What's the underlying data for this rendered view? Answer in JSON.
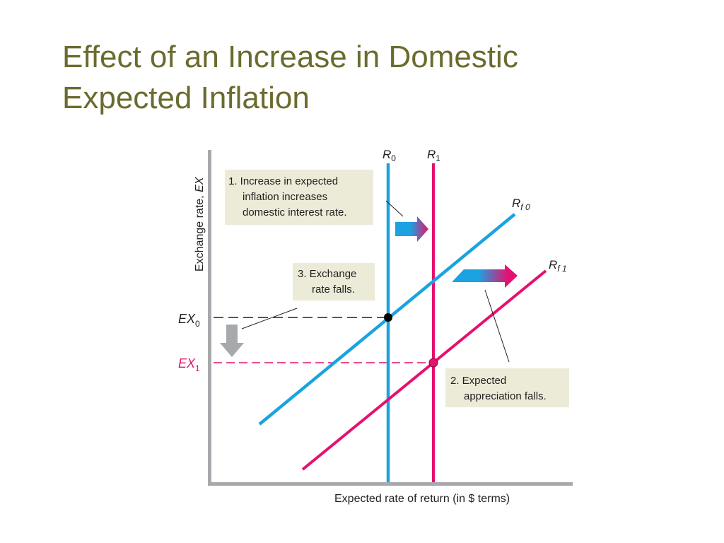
{
  "title": {
    "line1": "Effect of an Increase in Domestic",
    "line2": "Expected Inflation"
  },
  "diagram": {
    "y_axis_label": "Exchange rate, ",
    "y_axis_label_var": "EX",
    "x_axis_label": "Expected rate of return (in $ terms)",
    "curves": {
      "R0": {
        "main": "R",
        "sub": "0"
      },
      "R1": {
        "main": "R",
        "sub": "1"
      },
      "Rf0": {
        "main": "R",
        "sub": "f 0"
      },
      "Rf1": {
        "main": "R",
        "sub": "f 1"
      }
    },
    "levels": {
      "EX0": {
        "main": "EX",
        "sub": "0"
      },
      "EX1": {
        "main": "EX",
        "sub": "1"
      }
    },
    "notes": {
      "note1": [
        "1. Increase in expected",
        "inflation increases",
        "domestic interest rate."
      ],
      "note2": [
        "2. Expected",
        "appreciation falls."
      ],
      "note3": [
        "3. Exchange",
        "rate falls."
      ]
    },
    "colors": {
      "blue": "#1aa3e0",
      "magenta": "#e5116f",
      "note_bg": "#ecebd8",
      "axis": "#a7a9ac",
      "title": "#6b6b2e"
    }
  }
}
